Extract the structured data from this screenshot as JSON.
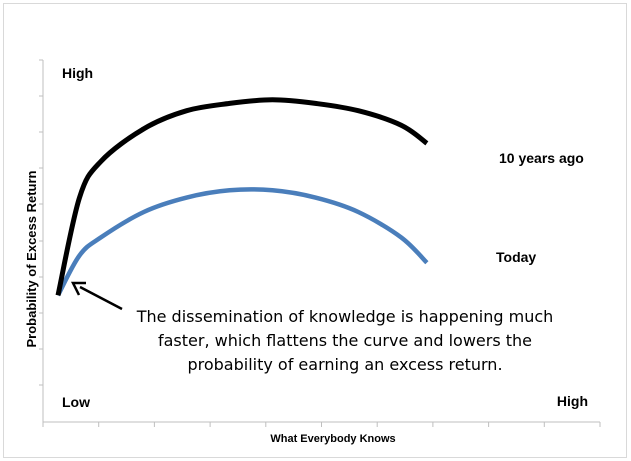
{
  "chart_data": {
    "type": "line",
    "title": "",
    "xlabel": "What Everybody Knows",
    "ylabel": "Probability of Excess Return",
    "y_high_label": "High",
    "x_low_label": "Low",
    "x_high_label": "High",
    "xlim": [
      0,
      100
    ],
    "ylim": [
      0,
      100
    ],
    "grid": false,
    "legend": "inline-labels",
    "series": [
      {
        "name": "10 years ago",
        "color": "#000000",
        "x": [
          0,
          5,
          10,
          20,
          30,
          40,
          50,
          60,
          70,
          80,
          86
        ],
        "y": [
          35,
          62,
          72,
          81,
          86,
          88,
          89,
          88,
          86,
          82,
          77
        ]
      },
      {
        "name": "Today",
        "color": "#4a7ebb",
        "x": [
          0,
          5,
          10,
          20,
          30,
          40,
          50,
          60,
          70,
          80,
          86
        ],
        "y": [
          35,
          46,
          51,
          58,
          62,
          64,
          64,
          62,
          58,
          51,
          44
        ]
      }
    ],
    "annotations": [
      {
        "lines": [
          "The dissemination of knowledge is happening much",
          "faster, which flattens the curve and lowers the",
          "probability of earning an excess return."
        ]
      }
    ]
  }
}
